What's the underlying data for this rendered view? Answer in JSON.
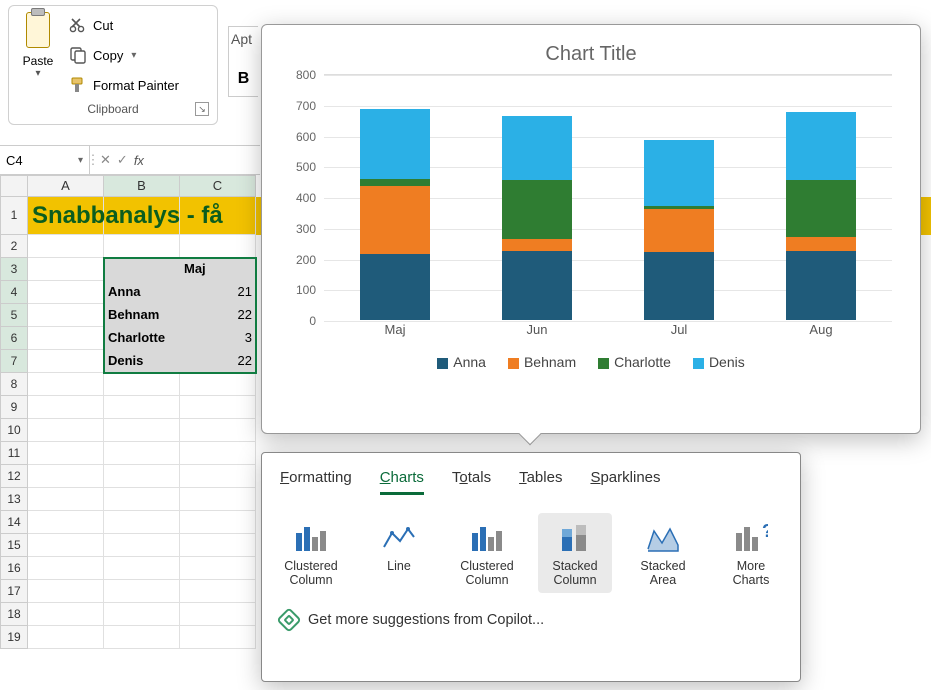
{
  "ribbon": {
    "paste_label": "Paste",
    "cut_label": "Cut",
    "copy_label": "Copy",
    "format_painter_label": "Format Painter",
    "group_label": "Clipboard"
  },
  "top_fragments": {
    "font_box_partial": "Apt",
    "bold_b": "B"
  },
  "name_box": "C4",
  "columns": [
    "A",
    "B",
    "C"
  ],
  "rows": [
    "1",
    "2",
    "3",
    "4",
    "5",
    "6",
    "7",
    "8",
    "9",
    "10",
    "11",
    "12",
    "13",
    "14",
    "15",
    "16",
    "17",
    "18",
    "19"
  ],
  "sheet": {
    "title": "Snabbanalys - få",
    "title_bg": "#f2c200",
    "title_color": "#0b5d1e",
    "header_row": {
      "col_c": "Maj"
    },
    "data": [
      {
        "name": "Anna",
        "val": "21"
      },
      {
        "name": "Behnam",
        "val": "22"
      },
      {
        "name": "Charlotte",
        "val": "3"
      },
      {
        "name": "Denis",
        "val": "22"
      }
    ]
  },
  "chart": {
    "title": "Chart Title",
    "type": "stacked-column",
    "y_max": 800,
    "y_tick_step": 100,
    "y_ticks": [
      0,
      100,
      200,
      300,
      400,
      500,
      600,
      700,
      800
    ],
    "categories": [
      "Maj",
      "Jun",
      "Jul",
      "Aug"
    ],
    "series": [
      {
        "name": "Anna",
        "color": "#1f5b7a"
      },
      {
        "name": "Behnam",
        "color": "#ef7d22"
      },
      {
        "name": "Charlotte",
        "color": "#2f7d32"
      },
      {
        "name": "Denis",
        "color": "#2bb0e6"
      }
    ],
    "stacks": [
      {
        "cat": "Maj",
        "values": [
          215,
          220,
          25,
          225
        ]
      },
      {
        "cat": "Jun",
        "values": [
          225,
          40,
          190,
          210
        ]
      },
      {
        "cat": "Jul",
        "values": [
          220,
          140,
          10,
          215
        ]
      },
      {
        "cat": "Aug",
        "values": [
          225,
          45,
          185,
          220
        ]
      }
    ],
    "title_fontsize": 20,
    "title_color": "#666666",
    "label_fontsize": 13,
    "grid_color": "#e6e6e6",
    "background_color": "#ffffff"
  },
  "quick_analysis": {
    "tabs": [
      {
        "label": "Formatting",
        "accel": "F"
      },
      {
        "label": "Charts",
        "accel": "C"
      },
      {
        "label": "Totals",
        "accel": "O"
      },
      {
        "label": "Tables",
        "accel": "T"
      },
      {
        "label": "Sparklines",
        "accel": "S"
      }
    ],
    "active_tab": 1,
    "items": [
      {
        "label": "Clustered Column"
      },
      {
        "label": "Line"
      },
      {
        "label": "Clustered Column"
      },
      {
        "label": "Stacked Column"
      },
      {
        "label": "Stacked Area"
      },
      {
        "label": "More Charts"
      }
    ],
    "hover_item": 3,
    "footer": "Get more suggestions from Copilot..."
  },
  "colors": {
    "selection_border": "#107c41",
    "selection_fill": "#d9d9d9",
    "icon_blue": "#2b6fb5",
    "icon_gray": "#8a8a8a"
  }
}
